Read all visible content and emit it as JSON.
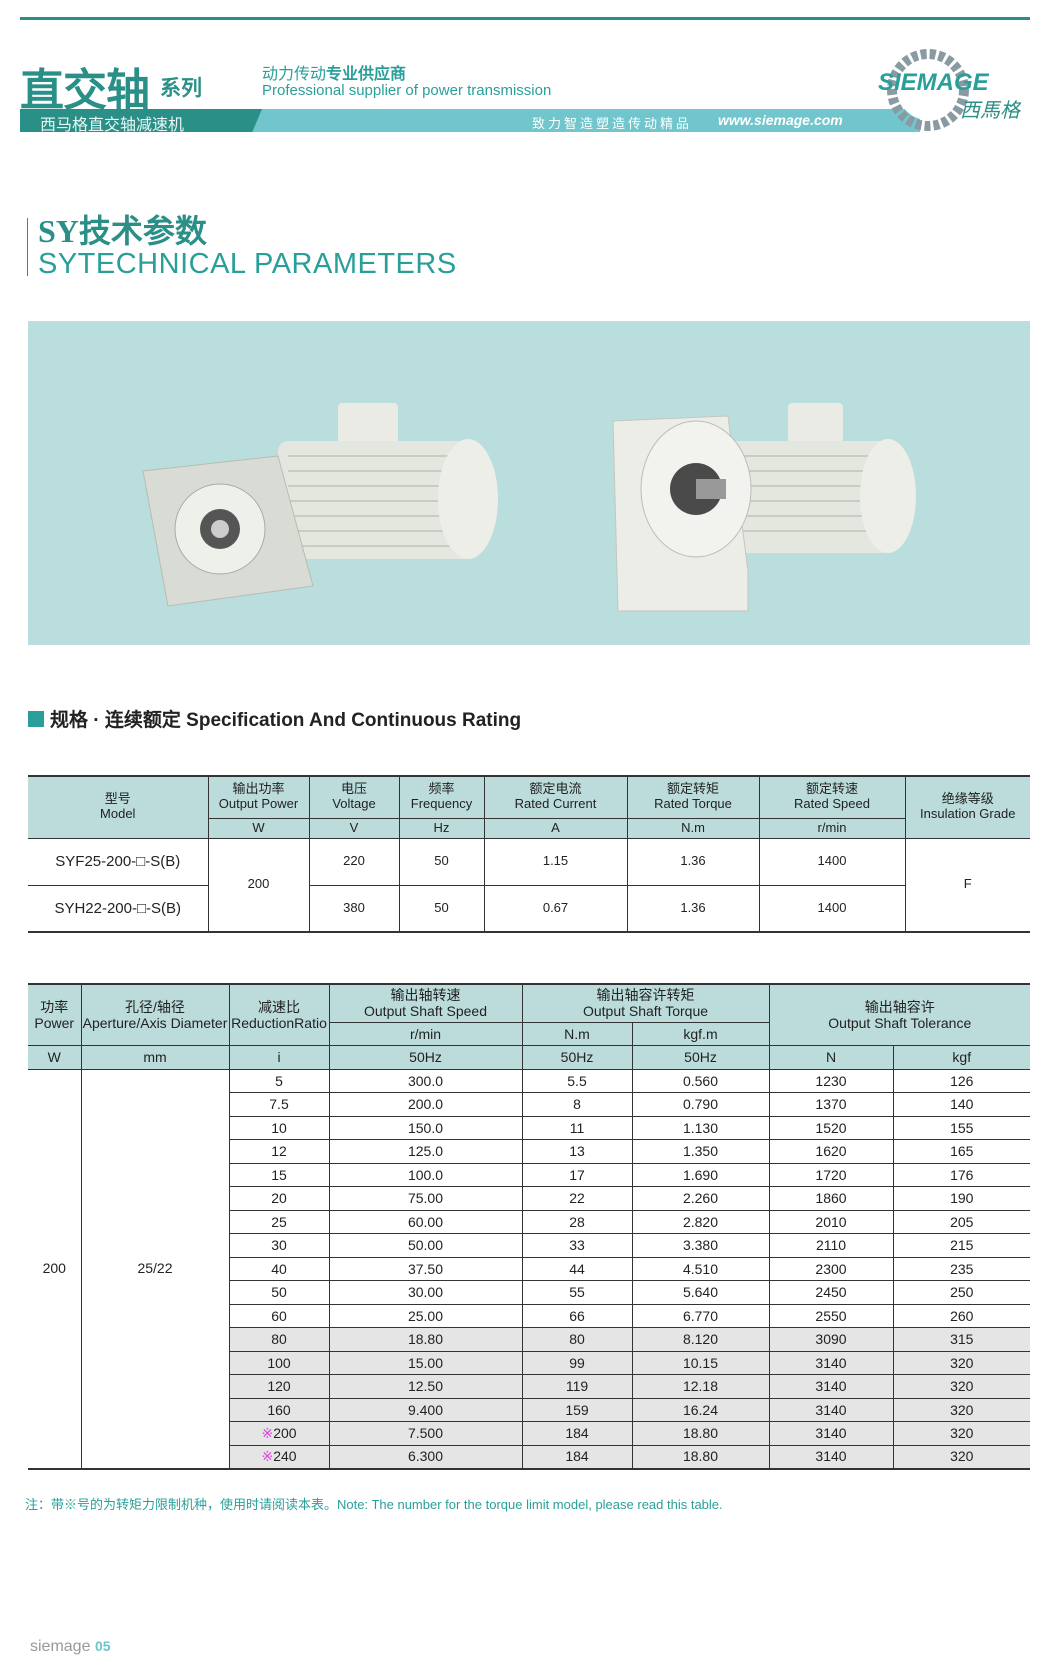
{
  "header": {
    "title": "直交轴",
    "title_suffix": "系列",
    "tagline_cn_light": "动力传动",
    "tagline_cn_bold": "专业供应商",
    "tagline_en": "Professional supplier of power transmission",
    "band_cn": "西马格直交轴减速机",
    "band_slogan": "致力智造塑造传动精品",
    "band_url": "www.siemage.com",
    "logo_text": "SIEMAGE",
    "logo_cn": "西馬格"
  },
  "section": {
    "title_cn": "SY技术参数",
    "title_en": "SYTECHNICAL PARAMETERS"
  },
  "spec_heading": "规格 · 连续额定 Specification And Continuous Rating",
  "colors": {
    "teal": "#2a8f86",
    "band": "#70c6cc",
    "header_bg": "#bcdcdc",
    "highlight_row": "#e5e5e5",
    "mark": "#e040e0"
  },
  "table1": {
    "headers": [
      {
        "cn": "型号",
        "en": "Model"
      },
      {
        "cn": "输出功率",
        "en": "Output Power",
        "unit": "W"
      },
      {
        "cn": "电压",
        "en": "Voltage",
        "unit": "V"
      },
      {
        "cn": "频率",
        "en": "Frequency",
        "unit": "Hz"
      },
      {
        "cn": "额定电流",
        "en": "Rated Current",
        "unit": "A"
      },
      {
        "cn": "额定转矩",
        "en": "Rated Torque",
        "unit": "N.m"
      },
      {
        "cn": "额定转速",
        "en": "Rated Speed",
        "unit": "r/min"
      },
      {
        "cn": "绝缘等级",
        "en": "Insulation Grade"
      }
    ],
    "power": "200",
    "grade": "F",
    "rows": [
      {
        "model": "SYF25-200-□-S(B)",
        "voltage": "220",
        "freq": "50",
        "current": "1.15",
        "torque": "1.36",
        "speed": "1400"
      },
      {
        "model": "SYH22-200-□-S(B)",
        "voltage": "380",
        "freq": "50",
        "current": "0.67",
        "torque": "1.36",
        "speed": "1400"
      }
    ]
  },
  "table2": {
    "h_power_cn": "功率",
    "h_power_en": "Power",
    "h_dia_cn": "孔径/轴径",
    "h_dia_en": "Aperture/Axis Diameter",
    "h_ratio_cn": "减速比",
    "h_ratio_en": "ReductionRatio",
    "h_speed_cn": "输出轴转速",
    "h_speed_en": "Output Shaft Speed",
    "h_torque_cn": "输出轴容许转矩",
    "h_torque_en": "Output Shaft Torque",
    "h_tol_cn": "输出轴容许",
    "h_tol_en": "Output Shaft Tolerance",
    "u_speed": "r/min",
    "u_nm": "N.m",
    "u_kgfm": "kgf.m",
    "u_w": "W",
    "u_mm": "mm",
    "u_i": "i",
    "u_hz1": "50Hz",
    "u_hz2": "50Hz",
    "u_hz3": "50Hz",
    "u_n": "N",
    "u_kgf": "kgf",
    "power": "200",
    "diameter": "25/22",
    "mark": "※",
    "rows": [
      {
        "i": "5",
        "speed": "300.0",
        "nm": "5.5",
        "kgfm": "0.560",
        "n": "1230",
        "kgf": "126"
      },
      {
        "i": "7.5",
        "speed": "200.0",
        "nm": "8",
        "kgfm": "0.790",
        "n": "1370",
        "kgf": "140"
      },
      {
        "i": "10",
        "speed": "150.0",
        "nm": "11",
        "kgfm": "1.130",
        "n": "1520",
        "kgf": "155"
      },
      {
        "i": "12",
        "speed": "125.0",
        "nm": "13",
        "kgfm": "1.350",
        "n": "1620",
        "kgf": "165"
      },
      {
        "i": "15",
        "speed": "100.0",
        "nm": "17",
        "kgfm": "1.690",
        "n": "1720",
        "kgf": "176"
      },
      {
        "i": "20",
        "speed": "75.00",
        "nm": "22",
        "kgfm": "2.260",
        "n": "1860",
        "kgf": "190"
      },
      {
        "i": "25",
        "speed": "60.00",
        "nm": "28",
        "kgfm": "2.820",
        "n": "2010",
        "kgf": "205"
      },
      {
        "i": "30",
        "speed": "50.00",
        "nm": "33",
        "kgfm": "3.380",
        "n": "2110",
        "kgf": "215"
      },
      {
        "i": "40",
        "speed": "37.50",
        "nm": "44",
        "kgfm": "4.510",
        "n": "2300",
        "kgf": "235"
      },
      {
        "i": "50",
        "speed": "30.00",
        "nm": "55",
        "kgfm": "5.640",
        "n": "2450",
        "kgf": "250"
      },
      {
        "i": "60",
        "speed": "25.00",
        "nm": "66",
        "kgfm": "6.770",
        "n": "2550",
        "kgf": "260"
      },
      {
        "i": "80",
        "speed": "18.80",
        "nm": "80",
        "kgfm": "8.120",
        "n": "3090",
        "kgf": "315",
        "shaded": true
      },
      {
        "i": "100",
        "speed": "15.00",
        "nm": "99",
        "kgfm": "10.15",
        "n": "3140",
        "kgf": "320",
        "shaded": true
      },
      {
        "i": "120",
        "speed": "12.50",
        "nm": "119",
        "kgfm": "12.18",
        "n": "3140",
        "kgf": "320",
        "shaded": true
      },
      {
        "i": "160",
        "speed": "9.400",
        "nm": "159",
        "kgfm": "16.24",
        "n": "3140",
        "kgf": "320",
        "shaded": true
      },
      {
        "i": "200",
        "speed": "7.500",
        "nm": "184",
        "kgfm": "18.80",
        "n": "3140",
        "kgf": "320",
        "shaded": true,
        "marked": true
      },
      {
        "i": "240",
        "speed": "6.300",
        "nm": "184",
        "kgfm": "18.80",
        "n": "3140",
        "kgf": "320",
        "shaded": true,
        "marked": true
      }
    ]
  },
  "note": "注：带※号的为转矩力限制机种，使用时请阅读本表。Note: The number for the torque limit model, please read this table.",
  "footer": {
    "brand": "siemage",
    "page": "05"
  }
}
